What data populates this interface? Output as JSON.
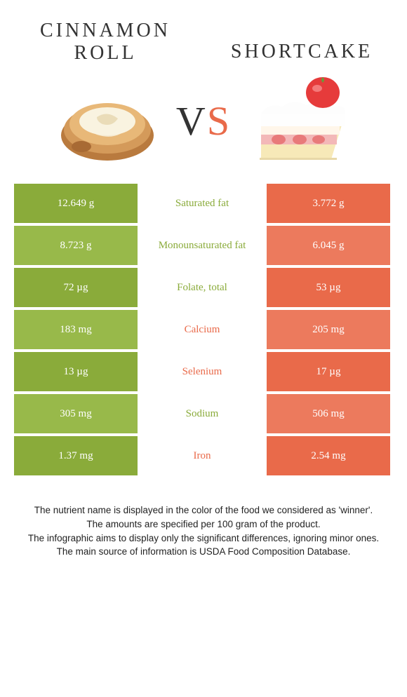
{
  "colors": {
    "left": "#8aab3a",
    "right": "#e96a4a",
    "left_alt": "#98b94a",
    "right_alt": "#ec7a5d",
    "mid_text_left": "#8aab3a",
    "mid_text_right": "#e96a4a"
  },
  "foods": {
    "left_name": "Cinnamon roll",
    "right_name": "Shortcake"
  },
  "vs": {
    "v": "V",
    "s": "S"
  },
  "rows": [
    {
      "nutrient": "Saturated fat",
      "left": "12.649 g",
      "right": "3.772 g",
      "winner": "left"
    },
    {
      "nutrient": "Monounsaturated fat",
      "left": "8.723 g",
      "right": "6.045 g",
      "winner": "left"
    },
    {
      "nutrient": "Folate, total",
      "left": "72 µg",
      "right": "53 µg",
      "winner": "left"
    },
    {
      "nutrient": "Calcium",
      "left": "183 mg",
      "right": "205 mg",
      "winner": "right"
    },
    {
      "nutrient": "Selenium",
      "left": "13 µg",
      "right": "17 µg",
      "winner": "right"
    },
    {
      "nutrient": "Sodium",
      "left": "305 mg",
      "right": "506 mg",
      "winner": "left"
    },
    {
      "nutrient": "Iron",
      "left": "1.37 mg",
      "right": "2.54 mg",
      "winner": "right"
    }
  ],
  "footer": {
    "line1": "The nutrient name is displayed in the color of the food we considered as 'winner'.",
    "line2": "The amounts are specified per 100 gram of the product.",
    "line3": "The infographic aims to display only the significant differences, ignoring minor ones.",
    "line4": "The main source of information is USDA Food Composition Database."
  }
}
